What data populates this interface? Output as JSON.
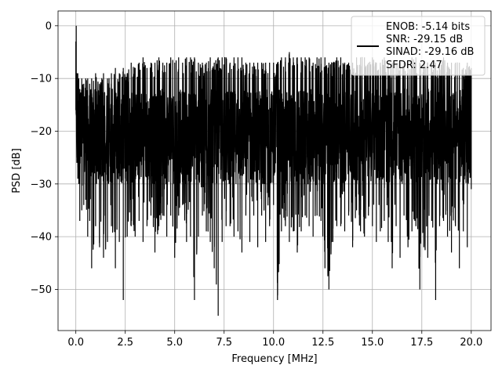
{
  "chart_data": {
    "type": "line",
    "title": "",
    "xlabel": "Frequency [MHz]",
    "ylabel": "PSD [dB]",
    "xlim": [
      -0.9,
      21.0
    ],
    "ylim": [
      -57.8,
      2.8
    ],
    "xticks": [
      0.0,
      2.5,
      5.0,
      7.5,
      10.0,
      12.5,
      15.0,
      17.5,
      20.0
    ],
    "xtick_labels": [
      "0.0",
      "2.5",
      "5.0",
      "7.5",
      "10.0",
      "12.5",
      "15.0",
      "17.5",
      "20.0"
    ],
    "yticks": [
      0,
      -10,
      -20,
      -30,
      -40,
      -50
    ],
    "ytick_labels": [
      "0",
      "−10",
      "−20",
      "−30",
      "−40",
      "−50"
    ],
    "grid": true,
    "legend_placement": "top-right",
    "line_color": "#000000",
    "series": [
      {
        "x": [
          0,
          0.02,
          0.05,
          0.1,
          0.15,
          0.2,
          0.3,
          0.4,
          0.5,
          0.6,
          0.7,
          0.8,
          1.0,
          1.2,
          1.4,
          1.6,
          1.8,
          2.0,
          2.2,
          2.4,
          2.6,
          2.8,
          3.0,
          3.2,
          3.4,
          3.6,
          3.8,
          4.0,
          4.2,
          4.4,
          4.6,
          4.8,
          5.0,
          5.2,
          5.4,
          5.6,
          5.8,
          6.0,
          6.2,
          6.4,
          6.6,
          6.8,
          7.0,
          7.2,
          7.4,
          7.6,
          7.8,
          8.0,
          8.2,
          8.4,
          8.6,
          8.8,
          9.0,
          9.2,
          9.4,
          9.6,
          9.8,
          10.0,
          10.2,
          10.4,
          10.6,
          10.8,
          11.0,
          11.2,
          11.4,
          11.6,
          11.8,
          12.0,
          12.2,
          12.4,
          12.6,
          12.8,
          13.0,
          13.2,
          13.4,
          13.6,
          13.8,
          14.0,
          14.2,
          14.4,
          14.6,
          14.8,
          15.0,
          15.2,
          15.4,
          15.6,
          15.8,
          16.0,
          16.2,
          16.4,
          16.6,
          16.8,
          17.0,
          17.2,
          17.4,
          17.6,
          17.8,
          18.0,
          18.2,
          18.4,
          18.6,
          18.8,
          19.0,
          19.2,
          19.4,
          19.6,
          19.8,
          20.0
        ],
        "y_max": [
          -3,
          0,
          -9,
          -9,
          -10,
          -12,
          -10,
          -11,
          -10,
          -10,
          -11,
          -10,
          -9,
          -11,
          -9,
          -10,
          -9,
          -8,
          -9,
          -8,
          -9,
          -7,
          -8,
          -7,
          -6,
          -8,
          -7,
          -7,
          -6,
          -7,
          -7,
          -6,
          -7,
          -6,
          -7,
          -6,
          -6,
          -6,
          -7,
          -7,
          -7,
          -6,
          -7,
          -6,
          -6,
          -6,
          -7,
          -6,
          -6,
          -6,
          -7,
          -7,
          -7,
          -7,
          -7,
          -7,
          -7,
          -7,
          -7,
          -6,
          -6,
          -5,
          -6,
          -6,
          -6,
          -6,
          -6,
          -7,
          -6,
          -6,
          -6,
          -7,
          -7,
          -6,
          -6,
          -7,
          -7,
          -7,
          -6,
          -6,
          -6,
          -7,
          -6,
          -7,
          -7,
          -6,
          -7,
          -7,
          -7,
          -7,
          -7,
          -7,
          -6,
          -6,
          -7,
          -7,
          -7,
          -7,
          -7,
          -7,
          -6,
          -7,
          -7,
          -7,
          -7,
          -8,
          -7,
          -8
        ],
        "y_min": [
          -16,
          -17,
          -26,
          -29,
          -30,
          -37,
          -35,
          -34,
          -33,
          -40,
          -37,
          -46,
          -38,
          -42,
          -44,
          -41,
          -38,
          -46,
          -41,
          -52,
          -40,
          -38,
          -40,
          -37,
          -41,
          -38,
          -36,
          -43,
          -38,
          -36,
          -40,
          -36,
          -44,
          -36,
          -34,
          -41,
          -40,
          -52,
          -40,
          -36,
          -39,
          -41,
          -46,
          -55,
          -41,
          -38,
          -38,
          -40,
          -39,
          -43,
          -36,
          -41,
          -36,
          -42,
          -36,
          -41,
          -38,
          -34,
          -52,
          -39,
          -38,
          -41,
          -39,
          -43,
          -39,
          -36,
          -38,
          -40,
          -36,
          -37,
          -46,
          -50,
          -41,
          -38,
          -38,
          -39,
          -36,
          -42,
          -35,
          -39,
          -40,
          -36,
          -38,
          -41,
          -39,
          -37,
          -41,
          -46,
          -38,
          -44,
          -36,
          -42,
          -39,
          -38,
          -50,
          -42,
          -44,
          -37,
          -52,
          -38,
          -37,
          -40,
          -43,
          -38,
          -46,
          -39,
          -42,
          -31
        ],
        "legend_text": [
          "ENOB: -5.14 bits",
          "SNR: -29.15 dB",
          "SINAD: -29.16 dB",
          "SFDR: 2.47"
        ]
      }
    ]
  }
}
